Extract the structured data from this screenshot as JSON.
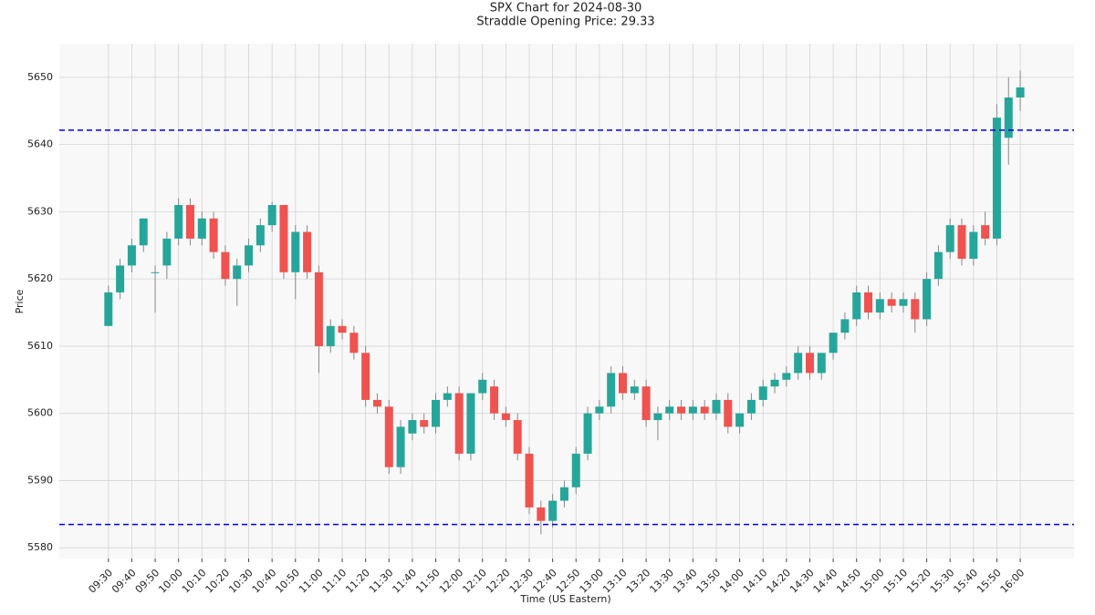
{
  "chart_data": {
    "type": "candlestick",
    "title": "SPX Chart for 2024-08-30",
    "subtitle": "Straddle Opening Price: 29.33",
    "x_label": "Time (US Eastern)",
    "y_label": "Price",
    "x": [
      "09:30",
      "09:35",
      "09:40",
      "09:45",
      "09:50",
      "09:55",
      "10:00",
      "10:05",
      "10:10",
      "10:15",
      "10:20",
      "10:25",
      "10:30",
      "10:35",
      "10:40",
      "10:45",
      "10:50",
      "10:55",
      "11:00",
      "11:05",
      "11:10",
      "11:15",
      "11:20",
      "11:25",
      "11:30",
      "11:35",
      "11:40",
      "11:45",
      "11:50",
      "11:55",
      "12:00",
      "12:05",
      "12:10",
      "12:15",
      "12:20",
      "12:25",
      "12:30",
      "12:35",
      "12:40",
      "12:45",
      "12:50",
      "12:55",
      "13:00",
      "13:05",
      "13:10",
      "13:15",
      "13:20",
      "13:25",
      "13:30",
      "13:35",
      "13:40",
      "13:45",
      "13:50",
      "13:55",
      "14:00",
      "14:05",
      "14:10",
      "14:15",
      "14:20",
      "14:25",
      "14:30",
      "14:35",
      "14:40",
      "14:45",
      "14:50",
      "14:55",
      "15:00",
      "15:05",
      "15:10",
      "15:15",
      "15:20",
      "15:25",
      "15:30",
      "15:35",
      "15:40",
      "15:45",
      "15:50",
      "15:55",
      "16:00"
    ],
    "open": [
      5613,
      5618,
      5622,
      5625,
      5621,
      5622,
      5626,
      5631,
      5626,
      5629,
      5624,
      5620,
      5622,
      5625,
      5628,
      5631,
      5621,
      5627,
      5621,
      5610,
      5613,
      5612,
      5609,
      5602,
      5601,
      5592,
      5597,
      5599,
      5598,
      5602,
      5603,
      5594,
      5603,
      5604,
      5600,
      5599,
      5594,
      5586,
      5584,
      5587,
      5589,
      5594,
      5600,
      5601,
      5606,
      5603,
      5604,
      5599,
      5600,
      5601,
      5600,
      5601,
      5600,
      5602,
      5598,
      5600,
      5602,
      5604,
      5605,
      5606,
      5609,
      5606,
      5609,
      5612,
      5614,
      5618,
      5615,
      5617,
      5616,
      5617,
      5614,
      5620,
      5624,
      5628,
      5623,
      5628,
      5626,
      5641,
      5647
    ],
    "high": [
      5619,
      5623,
      5626,
      5629,
      5622,
      5627,
      5632,
      5632,
      5630,
      5630,
      5625,
      5623,
      5626,
      5629,
      5631.5,
      5631,
      5628,
      5628,
      5622,
      5614,
      5614,
      5613,
      5610,
      5603,
      5602,
      5599,
      5600,
      5600,
      5603,
      5604,
      5604,
      5603,
      5606,
      5605,
      5601,
      5600,
      5595,
      5587,
      5588,
      5590,
      5595,
      5601,
      5602,
      5607,
      5607,
      5605,
      5605,
      5601,
      5602,
      5602,
      5602,
      5602,
      5603,
      5603,
      5600,
      5603,
      5605,
      5606,
      5607,
      5610,
      5610,
      5609,
      5612,
      5615,
      5619,
      5619,
      5618,
      5618,
      5618,
      5618,
      5621,
      5625,
      5629,
      5629,
      5628,
      5630,
      5646,
      5650,
      5651
    ],
    "low": [
      5613,
      5617,
      5621,
      5624,
      5615,
      5620,
      5625,
      5625,
      5625,
      5623,
      5619,
      5616,
      5621,
      5624,
      5627,
      5620,
      5617,
      5620,
      5606,
      5609,
      5611,
      5608,
      5601,
      5600,
      5591,
      5591,
      5596,
      5597,
      5597,
      5601,
      5593,
      5593,
      5602,
      5599,
      5598,
      5593,
      5585,
      5582,
      5583,
      5586,
      5588,
      5593,
      5599,
      5600,
      5602,
      5602,
      5598,
      5596,
      5599,
      5599,
      5599,
      5599,
      5599,
      5597,
      5597,
      5599,
      5601,
      5603,
      5604,
      5605,
      5605,
      5605,
      5608,
      5611,
      5613,
      5614,
      5614,
      5615,
      5615,
      5612,
      5613,
      5619,
      5623,
      5622,
      5622,
      5625,
      5625,
      5637,
      5645
    ],
    "close": [
      5618,
      5622,
      5625,
      5629,
      5621,
      5626,
      5631,
      5626,
      5629,
      5624,
      5620,
      5622,
      5625,
      5628,
      5631,
      5621,
      5627,
      5621,
      5610,
      5613,
      5612,
      5609,
      5602,
      5601,
      5592,
      5598,
      5599,
      5598,
      5602,
      5603,
      5594,
      5603,
      5605,
      5600,
      5599,
      5594,
      5586,
      5584,
      5587,
      5589,
      5594,
      5600,
      5601,
      5606,
      5603,
      5604,
      5599,
      5600,
      5601,
      5600,
      5601,
      5600,
      5602,
      5598,
      5600,
      5602,
      5604,
      5605,
      5606,
      5609,
      5606,
      5609,
      5612,
      5614,
      5618,
      5615,
      5617,
      5616,
      5617,
      5614,
      5620,
      5624,
      5628,
      5623,
      5627,
      5626,
      5644,
      5647,
      5648.5
    ],
    "up_color": "#26a69a",
    "down_color": "#ef5350",
    "reference_lines": [
      5642.13,
      5583.47
    ],
    "reference_color": "#0000dd",
    "xlim": [
      "09:09",
      "16:23"
    ],
    "xticks": [
      "09:30",
      "09:40",
      "09:50",
      "10:00",
      "10:10",
      "10:20",
      "10:30",
      "10:40",
      "10:50",
      "11:00",
      "11:10",
      "11:20",
      "11:30",
      "11:40",
      "11:50",
      "12:00",
      "12:10",
      "12:20",
      "12:30",
      "12:40",
      "12:50",
      "13:00",
      "13:10",
      "13:20",
      "13:30",
      "13:40",
      "13:50",
      "14:00",
      "14:10",
      "14:20",
      "14:30",
      "14:40",
      "14:50",
      "15:00",
      "15:10",
      "15:20",
      "15:30",
      "15:40",
      "15:50",
      "16:00"
    ],
    "ylim": [
      5578.4,
      5655
    ],
    "yticks": [
      5580,
      5590,
      5600,
      5610,
      5620,
      5630,
      5640,
      5650
    ],
    "grid": true
  }
}
